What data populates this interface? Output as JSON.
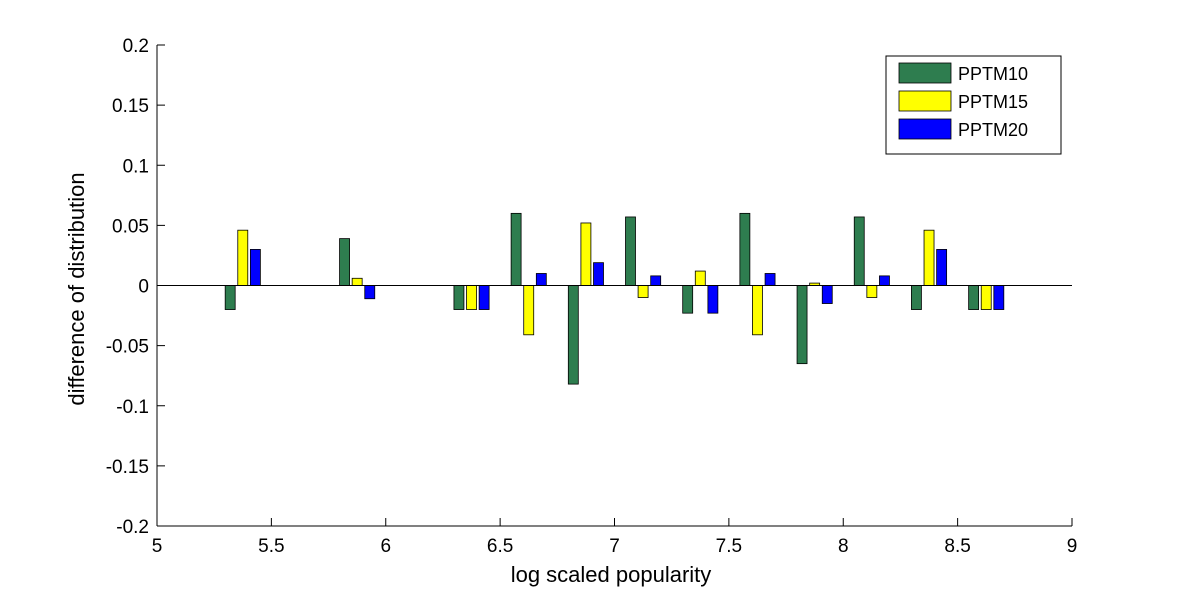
{
  "chart_data": {
    "type": "bar",
    "xlabel": "log scaled popularity",
    "ylabel": "difference of distribution",
    "xlim": [
      5,
      9
    ],
    "ylim": [
      -0.2,
      0.2
    ],
    "xticks": [
      5,
      5.5,
      6,
      6.5,
      7,
      7.5,
      8,
      8.5,
      9
    ],
    "xtick_labels": [
      "5",
      "5.5",
      "6",
      "6.5",
      "7",
      "7.5",
      "8",
      "8.5",
      "9"
    ],
    "yticks": [
      -0.2,
      -0.15,
      -0.1,
      -0.05,
      0,
      0.05,
      0.1,
      0.15,
      0.2
    ],
    "ytick_labels": [
      "-0.2",
      "-0.15",
      "-0.1",
      "-0.05",
      "0",
      "0.05",
      "0.1",
      "0.15",
      "0.2"
    ],
    "legend_position": "top-right",
    "grid": false,
    "x": [
      5.375,
      5.875,
      6.375,
      6.625,
      6.875,
      7.125,
      7.375,
      7.625,
      7.875,
      8.125,
      8.375,
      8.625
    ],
    "series": [
      {
        "name": "PPTM10",
        "color": "#2e7d4f",
        "values": [
          -0.02,
          0.039,
          -0.02,
          0.06,
          -0.082,
          0.057,
          -0.023,
          0.06,
          -0.065,
          0.057,
          -0.02,
          -0.02
        ]
      },
      {
        "name": "PPTM15",
        "color": "#ffff00",
        "values": [
          0.046,
          0.006,
          -0.02,
          -0.041,
          0.052,
          -0.01,
          0.012,
          -0.041,
          0.002,
          -0.01,
          0.046,
          -0.02
        ]
      },
      {
        "name": "PPTM20",
        "color": "#0000ff",
        "values": [
          0.03,
          -0.011,
          -0.02,
          0.01,
          0.019,
          0.008,
          -0.023,
          0.01,
          -0.015,
          0.008,
          0.03,
          -0.02
        ]
      }
    ]
  }
}
